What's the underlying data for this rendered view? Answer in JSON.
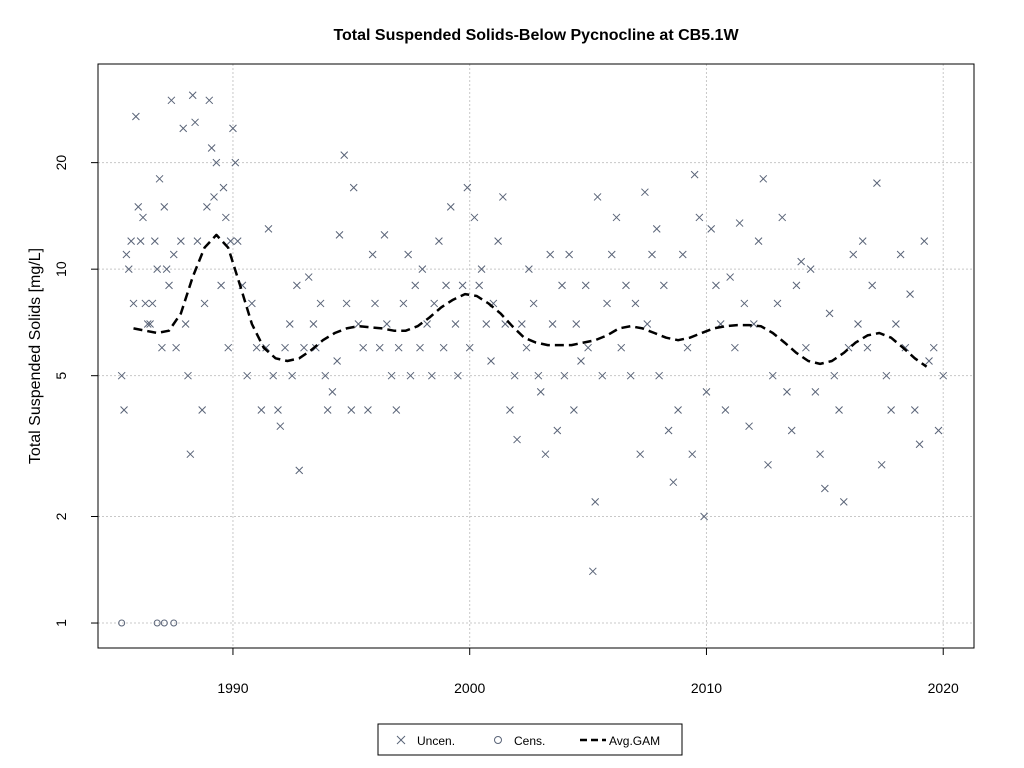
{
  "chart_data": {
    "type": "scatter",
    "title": "Total Suspended Solids-Below Pycnocline at CB5.1W",
    "xlabel": "",
    "ylabel": "Total Suspended Solids [mg/L]",
    "x_scale": "linear",
    "y_scale": "log",
    "xlim": [
      1984.3,
      2021.3
    ],
    "ylim": [
      0.85,
      38
    ],
    "x_ticks": [
      1990,
      2000,
      2010,
      2020
    ],
    "y_ticks": [
      1,
      2,
      5,
      10,
      20
    ],
    "grid": true,
    "legend_position": "bottom-center",
    "legend": [
      {
        "label": "Uncen.",
        "marker": "x"
      },
      {
        "label": "Cens.",
        "marker": "circle"
      },
      {
        "label": "Avg.GAM",
        "marker": "dashed-line"
      }
    ],
    "colors": {
      "points": "#5a6478",
      "gam": "#000000",
      "grid": "#c8c8c8"
    },
    "series": [
      {
        "name": "Uncen.",
        "points": [
          [
            1985.3,
            5
          ],
          [
            1985.4,
            4
          ],
          [
            1985.5,
            11
          ],
          [
            1985.6,
            10
          ],
          [
            1985.7,
            12
          ],
          [
            1985.8,
            8
          ],
          [
            1985.9,
            27
          ],
          [
            1986.0,
            15
          ],
          [
            1986.1,
            12
          ],
          [
            1986.2,
            14
          ],
          [
            1986.3,
            8
          ],
          [
            1986.4,
            7
          ],
          [
            1986.5,
            7
          ],
          [
            1986.6,
            8
          ],
          [
            1986.7,
            12
          ],
          [
            1986.8,
            10
          ],
          [
            1986.9,
            18
          ],
          [
            1987.0,
            6
          ],
          [
            1987.1,
            15
          ],
          [
            1987.2,
            10
          ],
          [
            1987.3,
            9
          ],
          [
            1987.4,
            30
          ],
          [
            1987.5,
            11
          ],
          [
            1987.6,
            6
          ],
          [
            1987.8,
            12
          ],
          [
            1987.9,
            25
          ],
          [
            1988.0,
            7
          ],
          [
            1988.1,
            5
          ],
          [
            1988.2,
            3
          ],
          [
            1988.3,
            31
          ],
          [
            1988.4,
            26
          ],
          [
            1988.5,
            12
          ],
          [
            1988.7,
            4
          ],
          [
            1988.8,
            8
          ],
          [
            1988.9,
            15
          ],
          [
            1989.0,
            30
          ],
          [
            1989.1,
            22
          ],
          [
            1989.2,
            16
          ],
          [
            1989.3,
            20
          ],
          [
            1989.5,
            9
          ],
          [
            1989.6,
            17
          ],
          [
            1989.7,
            14
          ],
          [
            1989.8,
            6
          ],
          [
            1989.9,
            12
          ],
          [
            1990.0,
            25
          ],
          [
            1990.1,
            20
          ],
          [
            1990.2,
            12
          ],
          [
            1990.4,
            9
          ],
          [
            1990.6,
            5
          ],
          [
            1990.8,
            8
          ],
          [
            1991.0,
            6
          ],
          [
            1991.2,
            4
          ],
          [
            1991.4,
            6
          ],
          [
            1991.5,
            13
          ],
          [
            1991.7,
            5
          ],
          [
            1991.9,
            4
          ],
          [
            1992.0,
            3.6
          ],
          [
            1992.2,
            6
          ],
          [
            1992.4,
            7
          ],
          [
            1992.5,
            5
          ],
          [
            1992.7,
            9
          ],
          [
            1992.8,
            2.7
          ],
          [
            1993.0,
            6
          ],
          [
            1993.2,
            9.5
          ],
          [
            1993.4,
            7
          ],
          [
            1993.5,
            6
          ],
          [
            1993.7,
            8
          ],
          [
            1993.9,
            5
          ],
          [
            1994.0,
            4
          ],
          [
            1994.2,
            4.5
          ],
          [
            1994.4,
            5.5
          ],
          [
            1994.5,
            12.5
          ],
          [
            1994.7,
            21
          ],
          [
            1994.8,
            8
          ],
          [
            1995.0,
            4
          ],
          [
            1995.1,
            17
          ],
          [
            1995.3,
            7
          ],
          [
            1995.5,
            6
          ],
          [
            1995.7,
            4
          ],
          [
            1995.9,
            11
          ],
          [
            1996.0,
            8
          ],
          [
            1996.2,
            6
          ],
          [
            1996.4,
            12.5
          ],
          [
            1996.5,
            7
          ],
          [
            1996.7,
            5
          ],
          [
            1996.9,
            4
          ],
          [
            1997.0,
            6
          ],
          [
            1997.2,
            8
          ],
          [
            1997.4,
            11
          ],
          [
            1997.5,
            5
          ],
          [
            1997.7,
            9
          ],
          [
            1997.9,
            6
          ],
          [
            1998.0,
            10
          ],
          [
            1998.2,
            7
          ],
          [
            1998.4,
            5
          ],
          [
            1998.5,
            8
          ],
          [
            1998.7,
            12
          ],
          [
            1998.9,
            6
          ],
          [
            1999.0,
            9
          ],
          [
            1999.2,
            15
          ],
          [
            1999.4,
            7
          ],
          [
            1999.5,
            5
          ],
          [
            1999.7,
            9
          ],
          [
            1999.9,
            17
          ],
          [
            2000.0,
            6
          ],
          [
            2000.2,
            14
          ],
          [
            2000.4,
            9
          ],
          [
            2000.5,
            10
          ],
          [
            2000.7,
            7
          ],
          [
            2000.9,
            5.5
          ],
          [
            2001.0,
            8
          ],
          [
            2001.2,
            12
          ],
          [
            2001.4,
            16
          ],
          [
            2001.5,
            7
          ],
          [
            2001.7,
            4
          ],
          [
            2001.9,
            5
          ],
          [
            2002.0,
            3.3
          ],
          [
            2002.2,
            7
          ],
          [
            2002.4,
            6
          ],
          [
            2002.5,
            10
          ],
          [
            2002.7,
            8
          ],
          [
            2002.9,
            5
          ],
          [
            2003.0,
            4.5
          ],
          [
            2003.2,
            3
          ],
          [
            2003.4,
            11
          ],
          [
            2003.5,
            7
          ],
          [
            2003.7,
            3.5
          ],
          [
            2003.9,
            9
          ],
          [
            2004.0,
            5
          ],
          [
            2004.2,
            11
          ],
          [
            2004.4,
            4
          ],
          [
            2004.5,
            7
          ],
          [
            2004.7,
            5.5
          ],
          [
            2004.9,
            9
          ],
          [
            2005.0,
            6
          ],
          [
            2005.2,
            1.4
          ],
          [
            2005.3,
            2.2
          ],
          [
            2005.4,
            16
          ],
          [
            2005.6,
            5
          ],
          [
            2005.8,
            8
          ],
          [
            2006.0,
            11
          ],
          [
            2006.2,
            14
          ],
          [
            2006.4,
            6
          ],
          [
            2006.6,
            9
          ],
          [
            2006.8,
            5
          ],
          [
            2007.0,
            8
          ],
          [
            2007.2,
            3
          ],
          [
            2007.4,
            16.5
          ],
          [
            2007.5,
            7
          ],
          [
            2007.7,
            11
          ],
          [
            2007.9,
            13
          ],
          [
            2008.0,
            5
          ],
          [
            2008.2,
            9
          ],
          [
            2008.4,
            3.5
          ],
          [
            2008.6,
            2.5
          ],
          [
            2008.8,
            4
          ],
          [
            2009.0,
            11
          ],
          [
            2009.2,
            6
          ],
          [
            2009.4,
            3
          ],
          [
            2009.5,
            18.5
          ],
          [
            2009.7,
            14
          ],
          [
            2009.9,
            2
          ],
          [
            2010.0,
            4.5
          ],
          [
            2010.2,
            13
          ],
          [
            2010.4,
            9
          ],
          [
            2010.6,
            7
          ],
          [
            2010.8,
            4
          ],
          [
            2011.0,
            9.5
          ],
          [
            2011.2,
            6
          ],
          [
            2011.4,
            13.5
          ],
          [
            2011.6,
            8
          ],
          [
            2011.8,
            3.6
          ],
          [
            2012.0,
            7
          ],
          [
            2012.2,
            12
          ],
          [
            2012.4,
            18
          ],
          [
            2012.6,
            2.8
          ],
          [
            2012.8,
            5
          ],
          [
            2013.0,
            8
          ],
          [
            2013.2,
            14
          ],
          [
            2013.4,
            4.5
          ],
          [
            2013.6,
            3.5
          ],
          [
            2013.8,
            9
          ],
          [
            2014.0,
            10.5
          ],
          [
            2014.2,
            6
          ],
          [
            2014.4,
            10
          ],
          [
            2014.6,
            4.5
          ],
          [
            2014.8,
            3
          ],
          [
            2015.0,
            2.4
          ],
          [
            2015.2,
            7.5
          ],
          [
            2015.4,
            5
          ],
          [
            2015.6,
            4
          ],
          [
            2015.8,
            2.2
          ],
          [
            2016.0,
            6
          ],
          [
            2016.2,
            11
          ],
          [
            2016.4,
            7
          ],
          [
            2016.6,
            12
          ],
          [
            2016.8,
            6
          ],
          [
            2017.0,
            9
          ],
          [
            2017.2,
            17.5
          ],
          [
            2017.4,
            2.8
          ],
          [
            2017.6,
            5
          ],
          [
            2017.8,
            4
          ],
          [
            2018.0,
            7
          ],
          [
            2018.2,
            11
          ],
          [
            2018.4,
            6
          ],
          [
            2018.6,
            8.5
          ],
          [
            2018.8,
            4
          ],
          [
            2019.0,
            3.2
          ],
          [
            2019.2,
            12
          ],
          [
            2019.4,
            5.5
          ],
          [
            2019.6,
            6
          ],
          [
            2019.8,
            3.5
          ],
          [
            2020.0,
            5
          ]
        ]
      },
      {
        "name": "Cens.",
        "points": [
          [
            1985.3,
            1.0
          ],
          [
            1986.8,
            1.0
          ],
          [
            1987.1,
            1.0
          ],
          [
            1987.5,
            1.0
          ]
        ]
      },
      {
        "name": "Avg.GAM",
        "points": [
          [
            1985.8,
            6.8
          ],
          [
            1986.3,
            6.7
          ],
          [
            1986.8,
            6.6
          ],
          [
            1987.3,
            6.7
          ],
          [
            1987.8,
            7.5
          ],
          [
            1988.3,
            9.5
          ],
          [
            1988.8,
            11.5
          ],
          [
            1989.3,
            12.5
          ],
          [
            1989.8,
            11.5
          ],
          [
            1990.3,
            9.0
          ],
          [
            1990.8,
            7.0
          ],
          [
            1991.3,
            6.0
          ],
          [
            1991.8,
            5.6
          ],
          [
            1992.3,
            5.5
          ],
          [
            1992.8,
            5.6
          ],
          [
            1993.3,
            5.9
          ],
          [
            1993.8,
            6.3
          ],
          [
            1994.3,
            6.6
          ],
          [
            1994.8,
            6.8
          ],
          [
            1995.3,
            6.9
          ],
          [
            1995.8,
            6.85
          ],
          [
            1996.3,
            6.8
          ],
          [
            1996.8,
            6.7
          ],
          [
            1997.3,
            6.7
          ],
          [
            1997.8,
            6.9
          ],
          [
            1998.3,
            7.3
          ],
          [
            1998.8,
            7.8
          ],
          [
            1999.3,
            8.2
          ],
          [
            1999.8,
            8.5
          ],
          [
            2000.3,
            8.4
          ],
          [
            2000.8,
            8.0
          ],
          [
            2001.3,
            7.5
          ],
          [
            2001.8,
            6.9
          ],
          [
            2002.3,
            6.4
          ],
          [
            2002.8,
            6.2
          ],
          [
            2003.3,
            6.1
          ],
          [
            2003.8,
            6.1
          ],
          [
            2004.3,
            6.1
          ],
          [
            2004.8,
            6.2
          ],
          [
            2005.3,
            6.3
          ],
          [
            2005.8,
            6.5
          ],
          [
            2006.3,
            6.8
          ],
          [
            2006.8,
            6.9
          ],
          [
            2007.3,
            6.8
          ],
          [
            2007.8,
            6.6
          ],
          [
            2008.3,
            6.4
          ],
          [
            2008.8,
            6.3
          ],
          [
            2009.3,
            6.4
          ],
          [
            2009.8,
            6.6
          ],
          [
            2010.3,
            6.8
          ],
          [
            2010.8,
            6.9
          ],
          [
            2011.3,
            6.95
          ],
          [
            2011.8,
            6.95
          ],
          [
            2012.3,
            6.9
          ],
          [
            2012.8,
            6.6
          ],
          [
            2013.3,
            6.2
          ],
          [
            2013.8,
            5.8
          ],
          [
            2014.3,
            5.5
          ],
          [
            2014.8,
            5.4
          ],
          [
            2015.3,
            5.5
          ],
          [
            2015.8,
            5.8
          ],
          [
            2016.3,
            6.2
          ],
          [
            2016.8,
            6.5
          ],
          [
            2017.3,
            6.6
          ],
          [
            2017.8,
            6.4
          ],
          [
            2018.3,
            6.0
          ],
          [
            2018.8,
            5.6
          ],
          [
            2019.3,
            5.3
          ]
        ]
      }
    ]
  }
}
